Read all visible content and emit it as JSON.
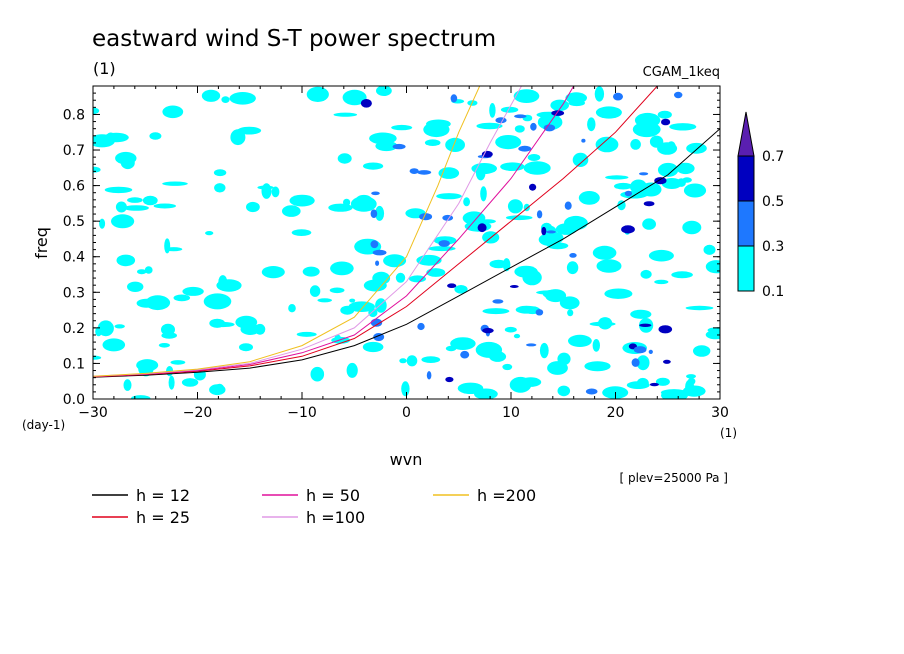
{
  "chart_data": {
    "type": "line",
    "title": "eastward wind S-T power spectrum",
    "subtitle_left": "(1)",
    "subtitle_right": "CGAM_1keq",
    "xlabel": "wvn",
    "ylabel": "freq",
    "x_unit": "(1)",
    "y_unit": "(day-1)",
    "xlim": [
      -30,
      30
    ],
    "ylim": [
      0,
      0.88
    ],
    "x_ticks": [
      -30,
      -20,
      -10,
      0,
      10,
      20,
      30
    ],
    "y_ticks": [
      0,
      0.1,
      0.2,
      0.3,
      0.4,
      0.5,
      0.6,
      0.7,
      0.8
    ],
    "x_tick_labels": [
      "−30",
      "−20",
      "−10",
      "0",
      "10",
      "20",
      "30"
    ],
    "y_tick_labels": [
      "0.0",
      "0.1",
      "0.2",
      "0.3",
      "0.4",
      "0.5",
      "0.6",
      "0.7",
      "0.8"
    ],
    "annotation": "[ plev=25000 Pa ]",
    "colorbar": {
      "levels": [
        0.1,
        0.3,
        0.5,
        0.7
      ],
      "labels": [
        "0.1",
        "0.3",
        "0.5",
        "0.7"
      ],
      "colors": [
        "#00ffff",
        "#1e78ff",
        "#0000c0",
        "#5a1fb0"
      ]
    },
    "series": [
      {
        "name": "h = 12",
        "color": "#000000",
        "x": [
          -30,
          -25,
          -20,
          -15,
          -10,
          -5,
          0,
          5,
          10,
          15,
          20,
          25,
          30
        ],
        "y": [
          0.061,
          0.067,
          0.075,
          0.087,
          0.11,
          0.15,
          0.21,
          0.29,
          0.37,
          0.45,
          0.54,
          0.63,
          0.76
        ]
      },
      {
        "name": "h = 25",
        "color": "#e0001c",
        "x": [
          -30,
          -25,
          -20,
          -15,
          -10,
          -5,
          0,
          5,
          10,
          15,
          20,
          24
        ],
        "y": [
          0.062,
          0.069,
          0.078,
          0.093,
          0.12,
          0.17,
          0.26,
          0.38,
          0.5,
          0.62,
          0.75,
          0.88
        ]
      },
      {
        "name": "h = 50",
        "color": "#e0109c",
        "x": [
          -30,
          -25,
          -20,
          -15,
          -10,
          -5,
          0,
          5,
          10,
          15,
          16
        ],
        "y": [
          0.063,
          0.07,
          0.08,
          0.097,
          0.13,
          0.18,
          0.29,
          0.45,
          0.62,
          0.83,
          0.88
        ]
      },
      {
        "name": "h =100",
        "color": "#e09ae6",
        "x": [
          -30,
          -25,
          -20,
          -15,
          -10,
          -5,
          0,
          5,
          8,
          11
        ],
        "y": [
          0.064,
          0.071,
          0.082,
          0.1,
          0.14,
          0.2,
          0.33,
          0.55,
          0.72,
          0.88
        ]
      },
      {
        "name": "h =200",
        "color": "#f0c020",
        "x": [
          -30,
          -25,
          -20,
          -15,
          -10,
          -5,
          0,
          3,
          5,
          7
        ],
        "y": [
          0.064,
          0.072,
          0.084,
          0.105,
          0.15,
          0.23,
          0.4,
          0.6,
          0.75,
          0.88
        ]
      }
    ],
    "legend_labels": [
      "h = 12",
      "h = 25",
      "h = 50",
      "h =100",
      "h =200"
    ]
  }
}
